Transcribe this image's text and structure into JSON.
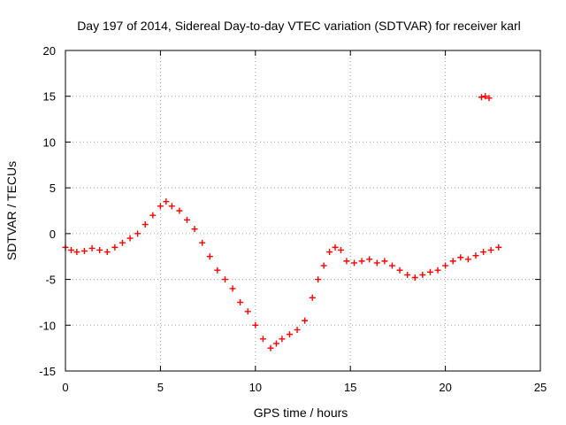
{
  "chart_data": {
    "type": "scatter",
    "title": "Day 197 of 2014, Sidereal Day-to-day VTEC variation (SDTVAR) for receiver karl",
    "xlabel": "GPS time / hours",
    "ylabel": "SDTVAR / TECUs",
    "xlim": [
      0,
      25
    ],
    "ylim": [
      -15,
      20
    ],
    "xticks": [
      0,
      5,
      10,
      15,
      20,
      25
    ],
    "yticks": [
      -15,
      -10,
      -5,
      0,
      5,
      10,
      15,
      20
    ],
    "xtick_labels": [
      "0",
      "5",
      "10",
      "15",
      "20",
      "25"
    ],
    "ytick_labels": [
      "-15",
      "-10",
      "-5",
      "0",
      "5",
      "10",
      "15",
      "20"
    ],
    "grid": true,
    "marker": "+",
    "color": "#ff0000",
    "series": [
      {
        "name": "SDTVAR",
        "x": [
          0.0,
          0.3,
          0.6,
          1.0,
          1.4,
          1.8,
          2.2,
          2.6,
          3.0,
          3.4,
          3.8,
          4.2,
          4.6,
          5.0,
          5.3,
          5.6,
          6.0,
          6.4,
          6.8,
          7.2,
          7.6,
          8.0,
          8.4,
          8.8,
          9.2,
          9.6,
          10.0,
          10.4,
          10.8,
          11.1,
          11.4,
          11.8,
          12.2,
          12.6,
          13.0,
          13.3,
          13.6,
          13.9,
          14.2,
          14.5,
          14.8,
          15.2,
          15.6,
          16.0,
          16.4,
          16.8,
          17.2,
          17.6,
          18.0,
          18.4,
          18.8,
          19.2,
          19.6,
          20.0,
          20.4,
          20.8,
          21.2,
          21.6,
          22.0,
          22.4,
          22.8
        ],
        "y": [
          -1.5,
          -1.8,
          -2.0,
          -1.9,
          -1.6,
          -1.8,
          -2.0,
          -1.5,
          -1.0,
          -0.5,
          0.0,
          1.0,
          2.0,
          3.0,
          3.5,
          3.0,
          2.5,
          1.5,
          0.5,
          -1.0,
          -2.5,
          -4.0,
          -5.0,
          -6.0,
          -7.5,
          -8.5,
          -10.0,
          -11.5,
          -12.5,
          -12.0,
          -11.5,
          -11.0,
          -10.5,
          -9.5,
          -7.0,
          -5.0,
          -3.5,
          -2.0,
          -1.5,
          -1.8,
          -3.0,
          -3.2,
          -3.0,
          -2.8,
          -3.2,
          -3.0,
          -3.5,
          -4.0,
          -4.5,
          -4.8,
          -4.5,
          -4.2,
          -4.0,
          -3.5,
          -3.0,
          -2.6,
          -2.8,
          -2.4,
          -2.0,
          -1.8,
          -1.5
        ]
      },
      {
        "name": "SDTVAR (outliers)",
        "x": [
          21.9,
          22.1,
          22.3
        ],
        "y": [
          14.9,
          15.0,
          14.8
        ]
      }
    ]
  }
}
